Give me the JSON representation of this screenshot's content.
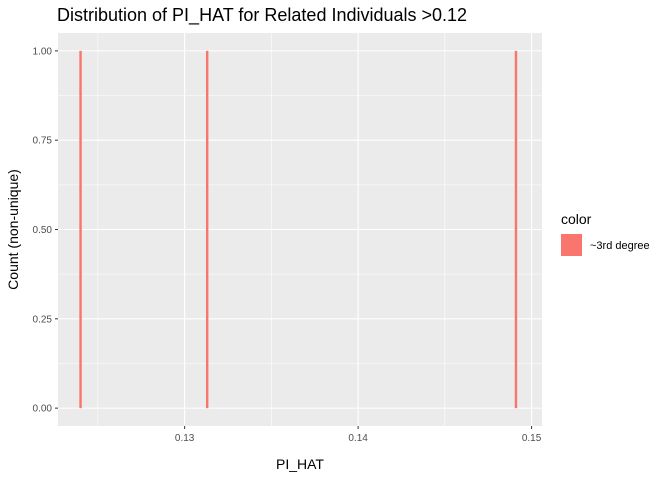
{
  "chart_data": {
    "type": "bar",
    "title": "Distribution of PI_HAT for Related Individuals >0.12",
    "xlabel": "PI_HAT",
    "ylabel": "Count (non-unique)",
    "xlim": [
      0.1227,
      0.1506
    ],
    "ylim": [
      -0.05,
      1.05
    ],
    "x_ticks": [
      0.13,
      0.14,
      0.15
    ],
    "x_tick_labels": [
      "0.13",
      "0.14",
      "0.15"
    ],
    "y_ticks": [
      0,
      0.25,
      0.5,
      0.75,
      1.0
    ],
    "y_tick_labels": [
      "0.00",
      "0.25",
      "0.50",
      "0.75",
      "1.00"
    ],
    "bin_width": 0.00014,
    "series": [
      {
        "name": "~3rd degree",
        "color": "#F8766D",
        "x": [
          0.124,
          0.1313,
          0.1491
        ],
        "values": [
          1,
          1,
          1
        ]
      }
    ],
    "legend": {
      "title": "color",
      "position": "right"
    },
    "grid": true,
    "panel_background": "#EBEBEB",
    "grid_color": "#FFFFFF"
  }
}
